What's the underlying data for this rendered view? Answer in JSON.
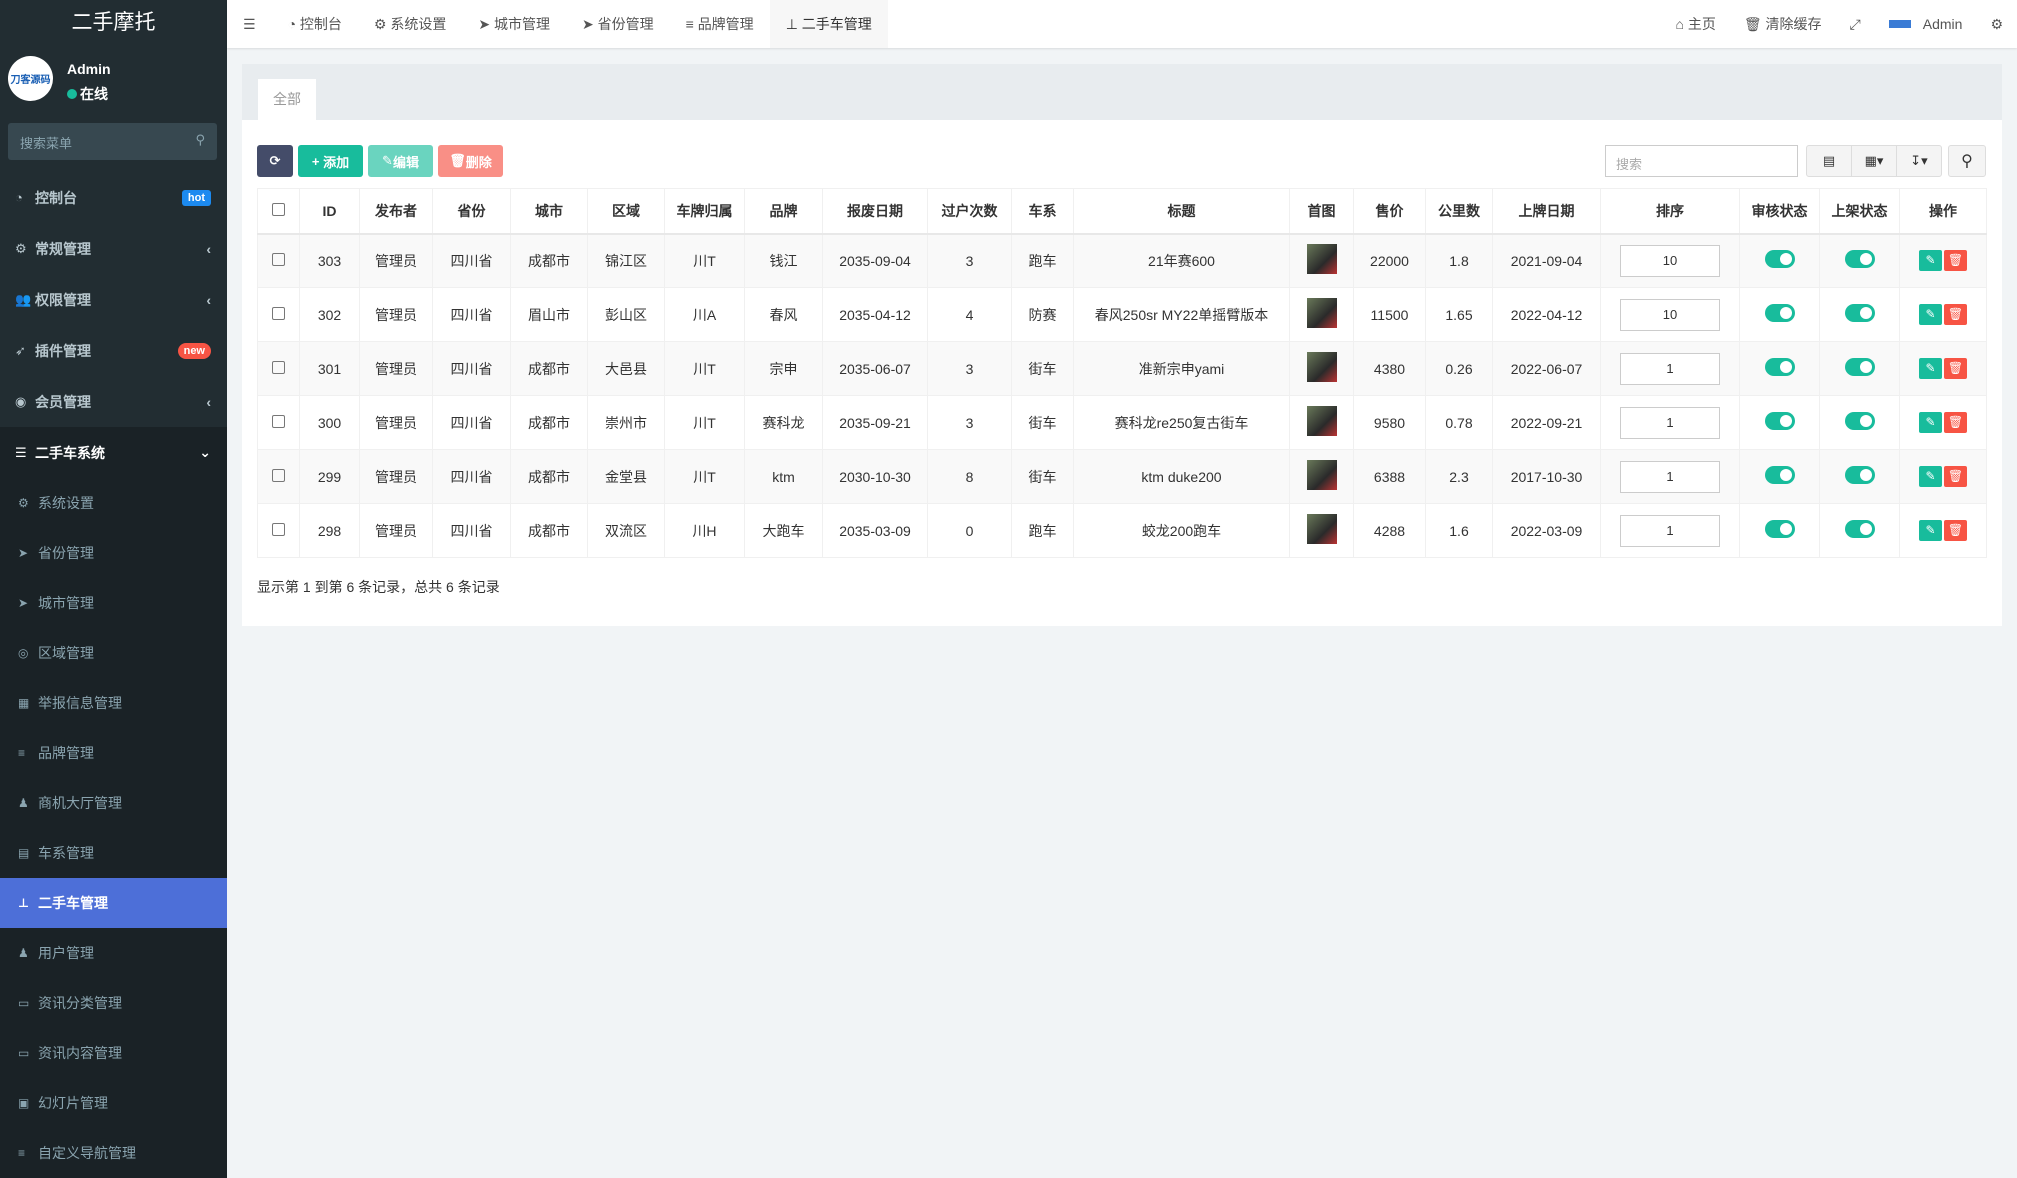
{
  "app": {
    "title": "二手摩托"
  },
  "user": {
    "name": "Admin",
    "status": "在线",
    "avatar_text": "刀客源码"
  },
  "menu_search": {
    "placeholder": "搜索菜单"
  },
  "menu": [
    {
      "label": "控制台",
      "icon": "dashboard-icon",
      "badge": "hot"
    },
    {
      "label": "常规管理",
      "icon": "cogs-icon",
      "arrow": "‹"
    },
    {
      "label": "权限管理",
      "icon": "users-icon",
      "arrow": "‹"
    },
    {
      "label": "插件管理",
      "icon": "rocket-icon",
      "badge": "new"
    },
    {
      "label": "会员管理",
      "icon": "user-circle-icon",
      "arrow": "‹"
    }
  ],
  "open_menu": {
    "label": "二手车系统",
    "icon": "list-icon",
    "arrow": "⌄"
  },
  "submenu": [
    {
      "label": "系统设置",
      "icon": "cogs-icon"
    },
    {
      "label": "省份管理",
      "icon": "location-arrow-icon"
    },
    {
      "label": "城市管理",
      "icon": "location-arrow-icon"
    },
    {
      "label": "区域管理",
      "icon": "compass-icon"
    },
    {
      "label": "举报信息管理",
      "icon": "film-icon"
    },
    {
      "label": "品牌管理",
      "icon": "bars-icon"
    },
    {
      "label": "商机大厅管理",
      "icon": "user-icon"
    },
    {
      "label": "车系管理",
      "icon": "th-list-icon"
    },
    {
      "label": "二手车管理",
      "icon": "sitemap-icon",
      "active": true
    },
    {
      "label": "用户管理",
      "icon": "user-icon"
    },
    {
      "label": "资讯分类管理",
      "icon": "newspaper-icon"
    },
    {
      "label": "资讯内容管理",
      "icon": "newspaper-icon"
    },
    {
      "label": "幻灯片管理",
      "icon": "image-icon"
    },
    {
      "label": "自定义导航管理",
      "icon": "bars-icon"
    }
  ],
  "topnav": {
    "tabs": [
      "控制台",
      "系统设置",
      "城市管理",
      "省份管理",
      "品牌管理",
      "二手车管理"
    ],
    "home": "主页",
    "clear_cache": "清除缓存",
    "admin": "Admin"
  },
  "panel": {
    "tab": "全部",
    "add": "添加",
    "edit": "编辑",
    "delete": "删除",
    "search_placeholder": "搜索"
  },
  "table": {
    "columns": [
      "ID",
      "发布者",
      "省份",
      "城市",
      "区域",
      "车牌归属",
      "品牌",
      "报废日期",
      "过户次数",
      "车系",
      "标题",
      "首图",
      "售价",
      "公里数",
      "上牌日期",
      "排序",
      "审核状态",
      "上架状态",
      "操作"
    ],
    "rows": [
      [
        "303",
        "管理员",
        "四川省",
        "成都市",
        "锦江区",
        "川T",
        "钱江",
        "2035-09-04",
        "3",
        "跑车",
        "21年赛600",
        "22000",
        "1.8",
        "2021-09-04",
        "10"
      ],
      [
        "302",
        "管理员",
        "四川省",
        "眉山市",
        "彭山区",
        "川A",
        "春风",
        "2035-04-12",
        "4",
        "防赛",
        "春风250sr MY22单摇臂版本",
        "11500",
        "1.65",
        "2022-04-12",
        "10"
      ],
      [
        "301",
        "管理员",
        "四川省",
        "成都市",
        "大邑县",
        "川T",
        "宗申",
        "2035-06-07",
        "3",
        "街车",
        "准新宗申yami",
        "4380",
        "0.26",
        "2022-06-07",
        "1"
      ],
      [
        "300",
        "管理员",
        "四川省",
        "成都市",
        "崇州市",
        "川T",
        "赛科龙",
        "2035-09-21",
        "3",
        "街车",
        "赛科龙re250复古街车",
        "9580",
        "0.78",
        "2022-09-21",
        "1"
      ],
      [
        "299",
        "管理员",
        "四川省",
        "成都市",
        "金堂县",
        "川T",
        "ktm",
        "2030-10-30",
        "8",
        "街车",
        "ktm duke200",
        "6388",
        "2.3",
        "2017-10-30",
        "1"
      ],
      [
        "298",
        "管理员",
        "四川省",
        "成都市",
        "双流区",
        "川H",
        "大跑车",
        "2035-03-09",
        "0",
        "跑车",
        "蛟龙200跑车",
        "4288",
        "1.6",
        "2022-03-09",
        "1"
      ]
    ],
    "audit_on": true,
    "listed_on": true
  },
  "footer": "显示第 1 到第 6 条记录，总共 6 条记录",
  "colors": {
    "sidebar": "#222d32",
    "active": "#4d6fd8",
    "success": "#18bc9c",
    "danger": "#f75444",
    "primary": "#444c69"
  }
}
